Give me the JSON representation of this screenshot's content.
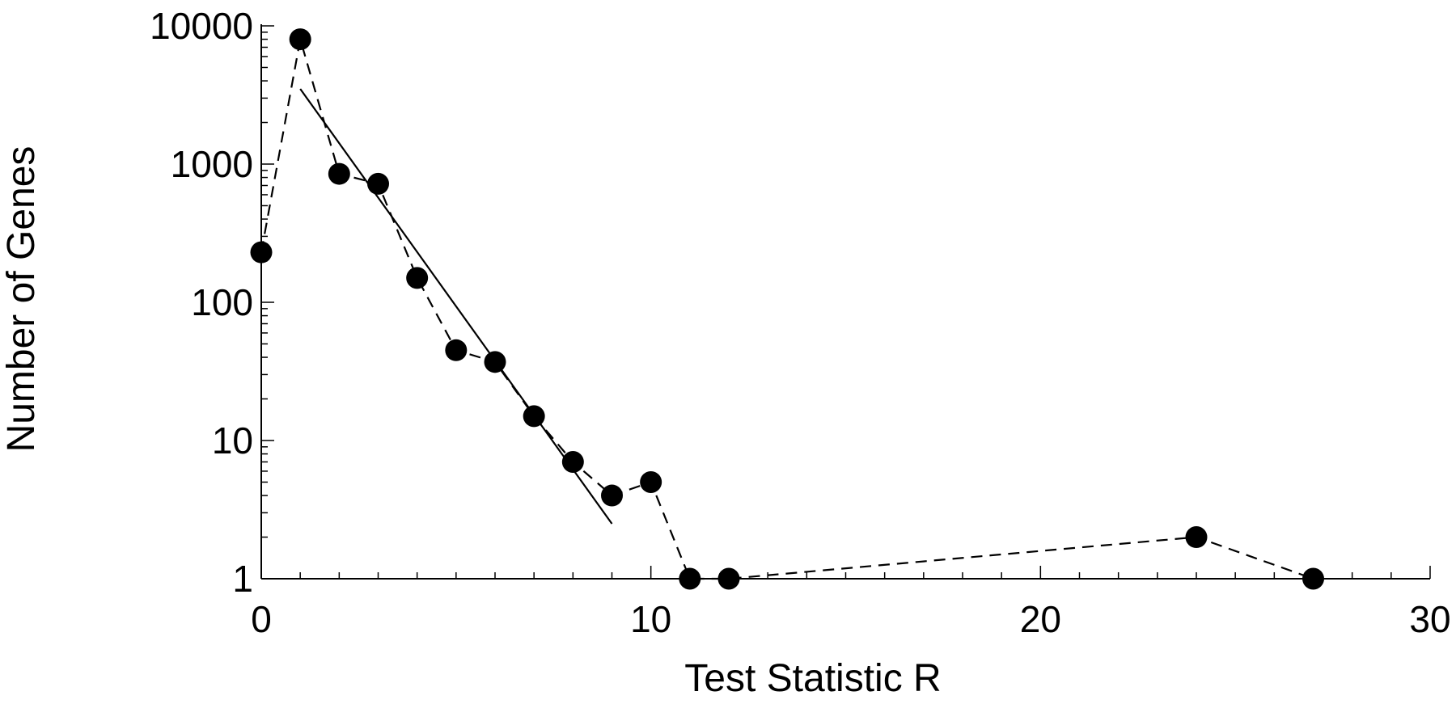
{
  "chart_data": {
    "type": "scatter",
    "title": "",
    "xlabel": "Test Statistic R",
    "ylabel": "Number of Genes",
    "x_scale": "linear",
    "y_scale": "log",
    "xlim": [
      0,
      30
    ],
    "ylim": [
      1,
      10000
    ],
    "x_ticks": [
      0,
      10,
      20,
      30
    ],
    "x_tick_labels": [
      "0",
      "10",
      "20",
      "30"
    ],
    "y_ticks": [
      1,
      10,
      100,
      1000,
      10000
    ],
    "y_tick_labels": [
      "1",
      "10",
      "100",
      "1000",
      "10000"
    ],
    "grid": false,
    "legend": "none",
    "series": [
      {
        "style": "markers-dashed-line",
        "color": "#000000",
        "x": [
          0,
          1,
          2,
          3,
          4,
          5,
          6,
          7,
          8,
          9,
          10,
          11,
          12,
          24,
          27
        ],
        "y": [
          230,
          8000,
          850,
          720,
          150,
          45,
          37,
          15,
          7,
          4,
          5,
          1,
          1,
          2,
          1
        ]
      },
      {
        "style": "solid-line",
        "color": "#000000",
        "x": [
          1,
          9
        ],
        "y": [
          3500,
          2.5
        ]
      }
    ]
  }
}
